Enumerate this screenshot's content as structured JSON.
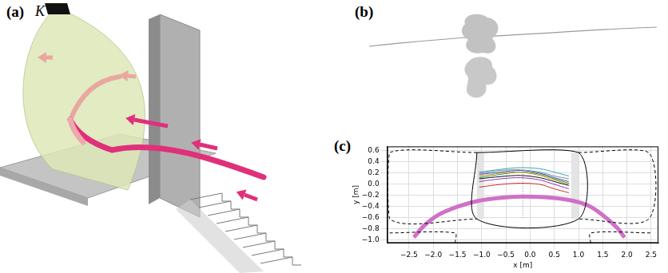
{
  "figure": {
    "panel_letters": [
      "(a)",
      "(b)",
      "(c)"
    ],
    "camera_label": "K"
  },
  "chart_data": {
    "type": "line",
    "x_label": "x [m]",
    "y_label": "y [m]",
    "xlim": [
      -2.95,
      2.65
    ],
    "ylim": [
      -1.05,
      0.68
    ],
    "xticks": [
      {
        "value": -2.5,
        "label": "−2.5"
      },
      {
        "value": -2.0,
        "label": "−2.0"
      },
      {
        "value": -1.5,
        "label": "−1.5"
      },
      {
        "value": -1.0,
        "label": "−1.0"
      },
      {
        "value": -0.5,
        "label": "−0.5"
      },
      {
        "value": 0,
        "label": "0.0"
      },
      {
        "value": 0.5,
        "label": "0.5"
      },
      {
        "value": 1.0,
        "label": "1.0"
      },
      {
        "value": 1.5,
        "label": "1.5"
      },
      {
        "value": 2.0,
        "label": "2.0"
      },
      {
        "value": 2.5,
        "label": "2.5"
      }
    ],
    "yticks": [
      {
        "value": -1.0,
        "label": "−1.0"
      },
      {
        "value": -0.8,
        "label": "−0.8"
      },
      {
        "value": -0.6,
        "label": "−0.6"
      },
      {
        "value": -0.4,
        "label": "−0.4"
      },
      {
        "value": -0.2,
        "label": "−0.2"
      },
      {
        "value": 0,
        "label": "0.0"
      },
      {
        "value": 0.2,
        "label": "0.2"
      },
      {
        "value": 0.4,
        "label": "0.4"
      },
      {
        "value": 0.6,
        "label": "0.6"
      }
    ],
    "grid": true,
    "tick_labels": true,
    "marker": "none",
    "series": [
      {
        "type": "area",
        "color": "#e4e4e4",
        "line_style": "solid",
        "x": [
          -1.1,
          -0.95,
          -0.95,
          -1.1,
          -1.1
        ],
        "values": [
          0.57,
          0.57,
          -0.62,
          -0.62,
          0.57
        ]
      },
      {
        "type": "area",
        "color": "#e4e4e4",
        "line_style": "solid",
        "x": [
          0.85,
          1.0,
          1.0,
          0.85,
          0.85
        ],
        "values": [
          0.57,
          0.57,
          -0.62,
          -0.62,
          0.57
        ]
      },
      {
        "color": "#000000",
        "line_style": "solid",
        "x": [
          -1.1,
          1.0,
          1.0,
          -1.1,
          -1.1
        ],
        "values": [
          0.57,
          0.57,
          -0.62,
          -0.62,
          0.57
        ]
      },
      {
        "color": "#000000",
        "line_style": "dashed",
        "x": [
          -1.1,
          -2.9,
          -2.9,
          -1.1
        ],
        "values": [
          0.57,
          0.57,
          -0.62,
          -0.62
        ]
      },
      {
        "color": "#000000",
        "line_style": "dashed",
        "x": [
          1.0,
          2.45,
          2.45,
          1.0
        ],
        "values": [
          0.57,
          0.57,
          -0.62,
          -0.62
        ]
      },
      {
        "color": "#000000",
        "line_style": "dashed",
        "x": [
          -2.9,
          -1.55,
          -1.55
        ],
        "values": [
          -0.87,
          -0.87,
          -1.05
        ]
      },
      {
        "color": "#000000",
        "line_style": "dashed",
        "x": [
          1.25,
          1.25,
          2.5
        ],
        "values": [
          -1.05,
          -0.87,
          -0.87
        ]
      },
      {
        "color": "#888888",
        "line_style": "dotted",
        "x": [
          -0.15,
          -0.15
        ],
        "values": [
          0.57,
          -0.62
        ]
      },
      {
        "color": "#3aa6b0",
        "line_style": "solid",
        "x": [
          -1.05,
          -0.6,
          -0.2,
          0.2,
          0.5,
          0.8
        ],
        "values": [
          0.22,
          0.27,
          0.3,
          0.28,
          0.22,
          0.15
        ]
      },
      {
        "color": "#8a8a8a",
        "line_style": "solid",
        "x": [
          -1.05,
          -0.6,
          -0.2,
          0.2,
          0.5,
          0.8
        ],
        "values": [
          0.2,
          0.25,
          0.26,
          0.22,
          0.15,
          0.1
        ]
      },
      {
        "color": "#2a55c8",
        "line_style": "solid",
        "x": [
          -1.05,
          -0.6,
          -0.2,
          0.2,
          0.5,
          0.8
        ],
        "values": [
          0.18,
          0.22,
          0.25,
          0.2,
          0.12,
          0.05
        ]
      },
      {
        "color": "#e08a20",
        "line_style": "solid",
        "x": [
          -1.05,
          -0.6,
          -0.2,
          0.2,
          0.5,
          0.8
        ],
        "values": [
          0.15,
          0.2,
          0.22,
          0.16,
          0.08,
          0.0
        ]
      },
      {
        "color": "#2a9a3a",
        "line_style": "solid",
        "x": [
          -1.05,
          -0.6,
          -0.2,
          0.2,
          0.5,
          0.8
        ],
        "values": [
          0.12,
          0.18,
          0.22,
          0.18,
          0.1,
          0.02
        ]
      },
      {
        "color": "#111111",
        "line_style": "solid",
        "x": [
          -1.05,
          -0.6,
          -0.2,
          0.2,
          0.5,
          0.8
        ],
        "values": [
          0.1,
          0.14,
          0.16,
          0.12,
          0.05,
          -0.02
        ]
      },
      {
        "color": "#8a3ab0",
        "line_style": "solid",
        "x": [
          -1.05,
          -0.6,
          -0.2,
          0.2,
          0.5,
          0.8
        ],
        "values": [
          0.05,
          0.1,
          0.12,
          0.08,
          0.0,
          -0.08
        ]
      },
      {
        "color": "#d02a2a",
        "line_style": "solid",
        "x": [
          -1.05,
          -0.6,
          -0.2,
          0.2,
          0.5,
          0.8
        ],
        "values": [
          -0.05,
          0.0,
          0.02,
          0.0,
          -0.08,
          -0.15
        ]
      },
      {
        "color": "#d070c8",
        "line_style": "band",
        "x": [
          -2.4,
          -2.2,
          -1.9,
          -1.5,
          -1.1,
          -0.6,
          -0.2,
          0.3,
          0.8,
          1.2,
          1.5,
          1.8,
          1.95
        ],
        "values": [
          -0.95,
          -0.75,
          -0.55,
          -0.4,
          -0.3,
          -0.24,
          -0.22,
          -0.23,
          -0.28,
          -0.38,
          -0.55,
          -0.78,
          -0.95
        ]
      }
    ]
  }
}
